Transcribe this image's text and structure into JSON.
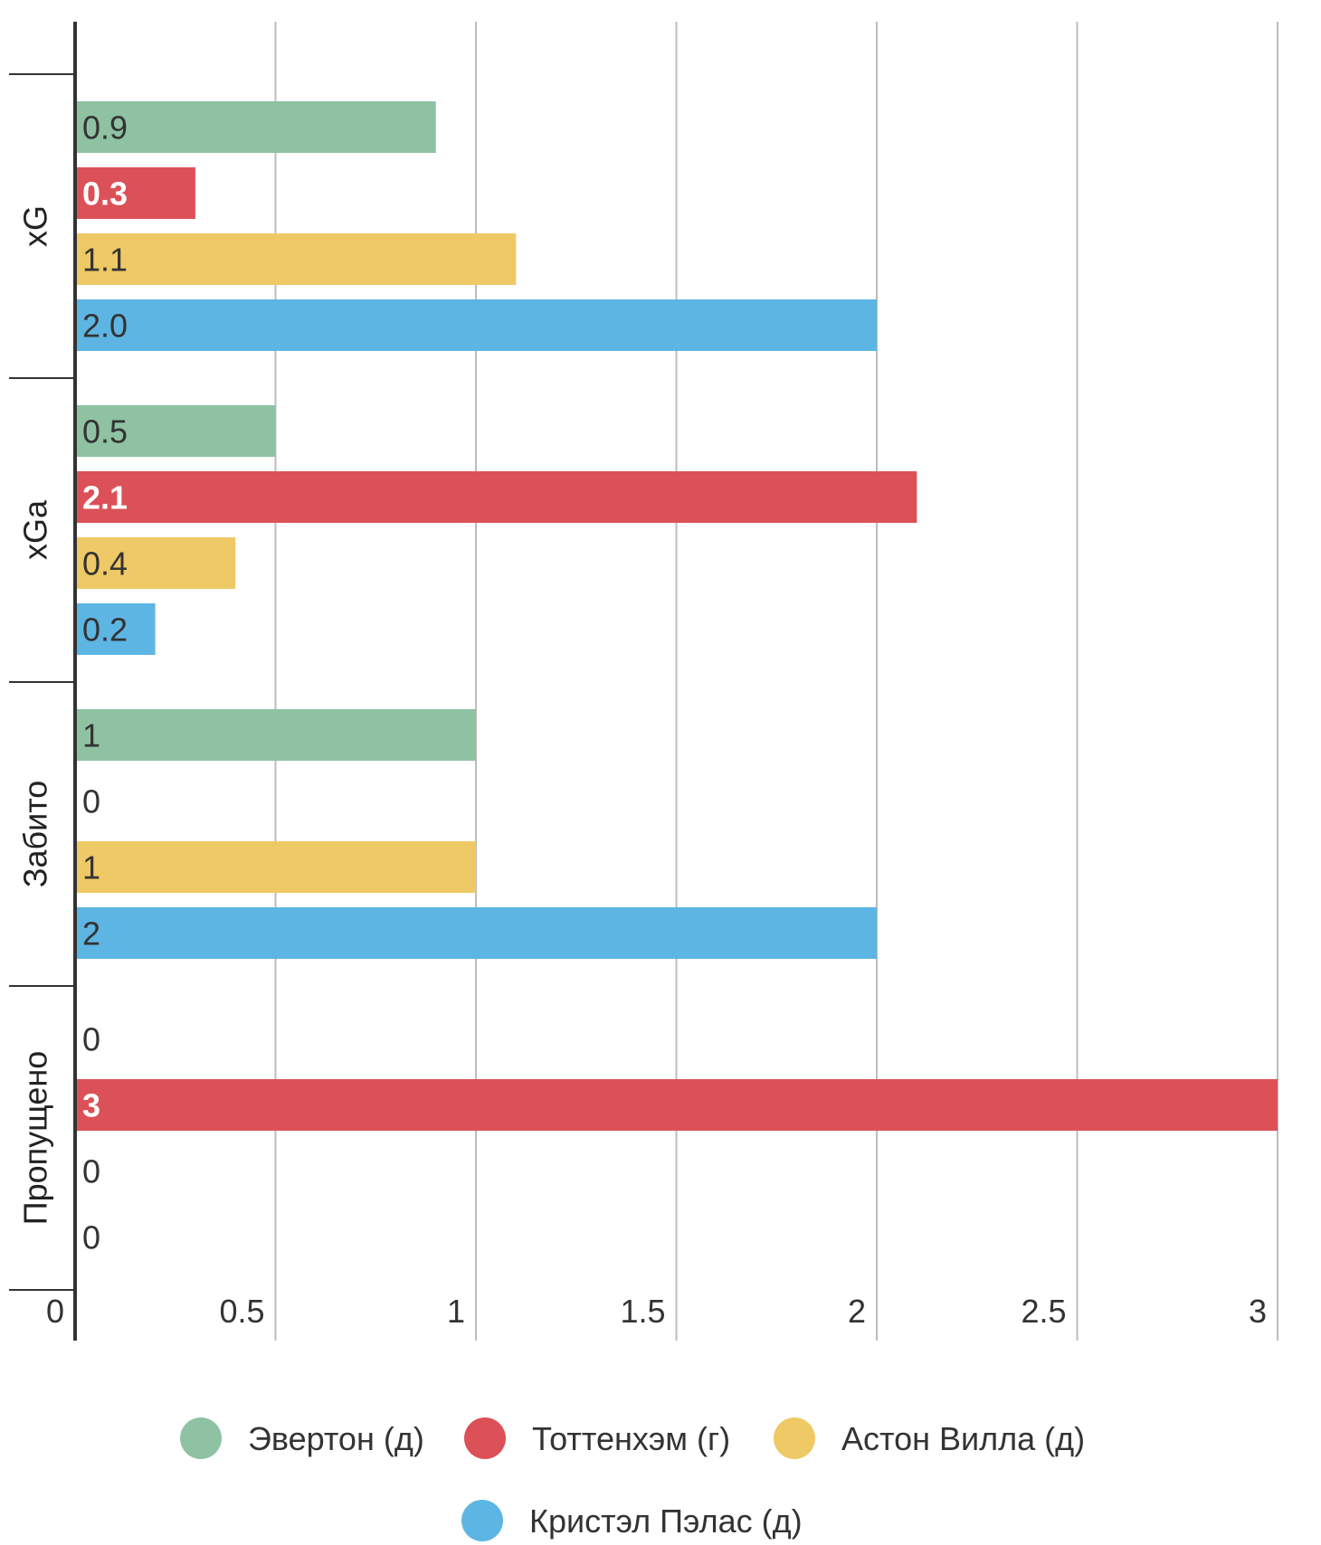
{
  "chart_data": {
    "type": "bar",
    "orientation": "horizontal",
    "categories": [
      "xG",
      "xGa",
      "Забито",
      "Пропущено"
    ],
    "series": [
      {
        "name": "Эвертон (д)",
        "color": "#8ec2a3",
        "values": [
          0.9,
          0.5,
          1,
          0
        ],
        "labels": [
          "0.9",
          "0.5",
          "1",
          "0"
        ],
        "label_color": "#333333",
        "label_bold": false
      },
      {
        "name": "Тоттенхэм (г)",
        "color": "#dc5157",
        "values": [
          0.3,
          2.1,
          0,
          3
        ],
        "labels": [
          "0.3",
          "2.1",
          "0",
          "3"
        ],
        "label_color": "#ffffff",
        "label_bold": true
      },
      {
        "name": "Астон Вилла (д)",
        "color": "#efc966",
        "values": [
          1.1,
          0.4,
          1,
          0
        ],
        "labels": [
          "1.1",
          "0.4",
          "1",
          "0"
        ],
        "label_color": "#333333",
        "label_bold": false
      },
      {
        "name": "Кристэл Пэлас (д)",
        "color": "#5db5e3",
        "values": [
          2.0,
          0.2,
          2,
          0
        ],
        "labels": [
          "2.0",
          "0.2",
          "2",
          "0"
        ],
        "label_color": "#333333",
        "label_bold": false
      }
    ],
    "xlim": [
      0,
      3
    ],
    "xticks": [
      0,
      0.5,
      1,
      1.5,
      2,
      2.5,
      3
    ],
    "xtick_labels": [
      "0",
      "0.5",
      "1",
      "1.5",
      "2",
      "2.5",
      "3"
    ],
    "grid": true,
    "legend_position": "bottom-center",
    "title": "",
    "xlabel": "",
    "ylabel": ""
  }
}
